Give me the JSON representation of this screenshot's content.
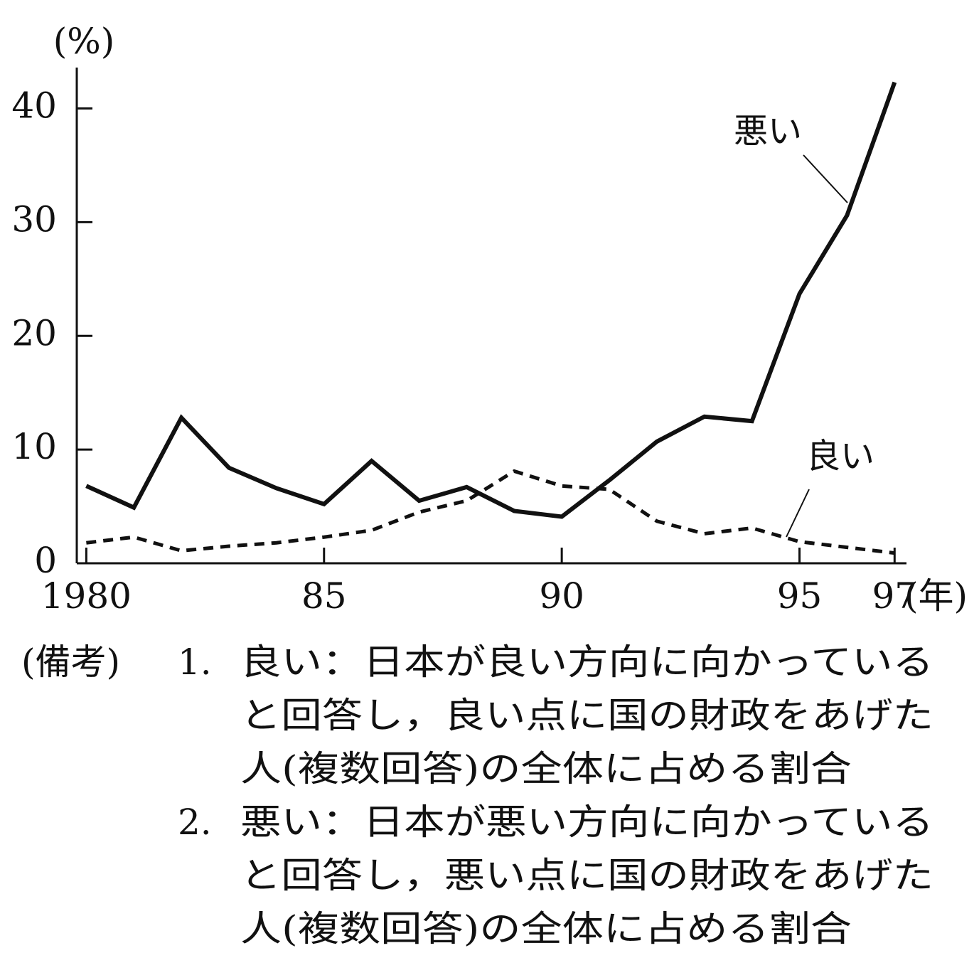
{
  "chart_data": {
    "type": "line",
    "y_unit": "(%)",
    "x_unit": "(年)",
    "x": [
      1980,
      1981,
      1982,
      1983,
      1984,
      1985,
      1986,
      1987,
      1988,
      1989,
      1990,
      1991,
      1992,
      1993,
      1994,
      1995,
      1996,
      1997
    ],
    "series": [
      {
        "name": "悪い",
        "color": "#111111",
        "style": "solid",
        "values": [
          6.8,
          4.9,
          12.8,
          8.4,
          6.6,
          5.2,
          9.0,
          5.5,
          6.7,
          4.6,
          4.1,
          7.3,
          10.7,
          12.9,
          12.5,
          23.7,
          30.6,
          42.3
        ]
      },
      {
        "name": "良い",
        "color": "#111111",
        "style": "dashed",
        "values": [
          1.8,
          2.3,
          1.1,
          1.5,
          1.8,
          2.3,
          2.9,
          4.5,
          5.5,
          8.1,
          6.8,
          6.5,
          3.7,
          2.6,
          3.1,
          1.9,
          1.4,
          0.9
        ]
      }
    ],
    "xlim": [
      1979.8,
      1997.25
    ],
    "ylim": [
      0,
      43.6
    ],
    "xticks": [
      {
        "value": 1980,
        "label": "1980"
      },
      {
        "value": 1985,
        "label": "85"
      },
      {
        "value": 1990,
        "label": "90"
      },
      {
        "value": 1995,
        "label": "95"
      },
      {
        "value": 1997,
        "label": "97"
      }
    ],
    "yticks": [
      0,
      10,
      20,
      30,
      40
    ],
    "grid": false,
    "notes_label": "(備考)",
    "notes": [
      {
        "number": "1.",
        "lines": [
          "良い：日本が良い方向に向かっている",
          "と回答し，良い点に国の財政をあげた",
          "人(複数回答)の全体に占める割合"
        ]
      },
      {
        "number": "2.",
        "lines": [
          "悪い：日本が悪い方向に向かっている",
          "と回答し，悪い点に国の財政をあげた",
          "人(複数回答)の全体に占める割合"
        ]
      }
    ]
  }
}
